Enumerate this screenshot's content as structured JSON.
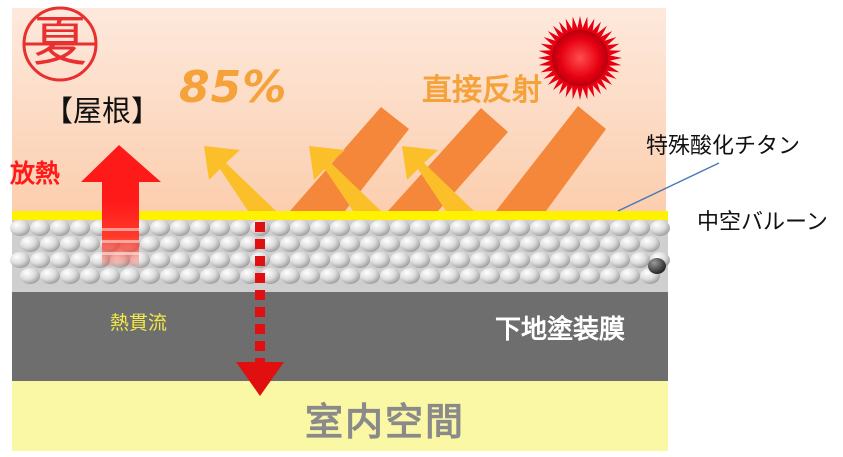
{
  "season": {
    "char": "夏",
    "color": "#e83030"
  },
  "roof_label": "【屋根】",
  "heat_release_label": "放熱",
  "reflection_percent": "85%",
  "direct_reflection_label": "直接反射",
  "titanium_label": "特殊酸化チタン",
  "hollow_balloon_label": "中空バルーン",
  "heat_transmission_label": "熱貫流",
  "base_coating_label": "下地塗装膜",
  "indoor_space_label": "室内空間",
  "colors": {
    "sky_top": "#fde7da",
    "sky_bottom": "#fcd0b0",
    "titanium_layer": "#fff200",
    "balloon_layer": "#d8d8d8",
    "base_layer": "#6e6e6e",
    "indoor_layer": "#faf7a5",
    "incoming_ray": "#f4873a",
    "reflected_ray": "#fbbf2a",
    "heat_arrow": "#ff1a1a",
    "sun": "#e60012"
  },
  "icons": {
    "sun": "sun-icon",
    "heat_arrow": "heat-release-arrow-icon",
    "transmission_arrow": "heat-transmission-arrow-icon"
  }
}
